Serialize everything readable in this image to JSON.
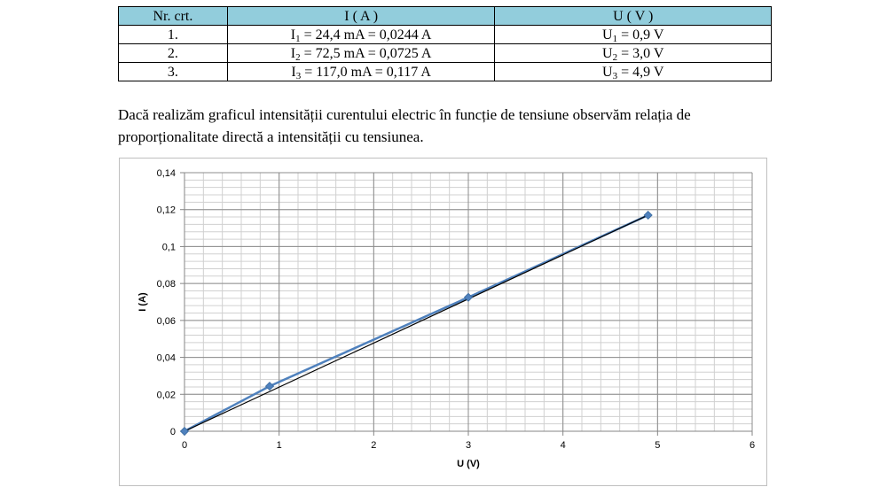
{
  "table": {
    "headers": [
      "Nr. crt.",
      "I ( A )",
      "U ( V )"
    ],
    "header_color": "#92cddc",
    "rows": [
      {
        "nr": "1.",
        "i_sym": "I",
        "i_sub": "1",
        "i_val": " = 24,4 mA = 0,0244 A",
        "u_sym": "U",
        "u_sub": "1",
        "u_val": " = 0,9 V"
      },
      {
        "nr": "2.",
        "i_sym": "I",
        "i_sub": "2",
        "i_val": " = 72,5 mA = 0,0725 A",
        "u_sym": "U",
        "u_sub": "2",
        "u_val": " = 3,0 V"
      },
      {
        "nr": "3.",
        "i_sym": "I",
        "i_sub": "3",
        "i_val": " = 117,0 mA = 0,117 A",
        "u_sym": "U",
        "u_sub": "3",
        "u_val": " = 4,9 V"
      }
    ]
  },
  "paragraph": "Dacă realizăm graficul intensității curentului electric în funcție de tensiune observăm relația de proporționalitate directă a intensității cu tensiunea.",
  "chart_data": {
    "type": "scatter",
    "xlabel": "U (V)",
    "ylabel": "I (A)",
    "xlim": [
      0,
      6
    ],
    "ylim": [
      0,
      0.14
    ],
    "x_ticks": [
      "0",
      "1",
      "2",
      "3",
      "4",
      "5",
      "6"
    ],
    "y_ticks": [
      "0",
      "0,02",
      "0,04",
      "0,06",
      "0,08",
      "0,1",
      "0,12",
      "0,14"
    ],
    "grid": true,
    "series": [
      {
        "x": [
          0,
          0.9,
          3.0,
          4.9
        ],
        "y": [
          0,
          0.0244,
          0.0725,
          0.117
        ],
        "color": "#4f81bd",
        "marker": "diamond"
      }
    ],
    "trendline": {
      "x": [
        0,
        4.9
      ],
      "y": [
        0,
        0.117
      ],
      "color": "#000000"
    }
  }
}
